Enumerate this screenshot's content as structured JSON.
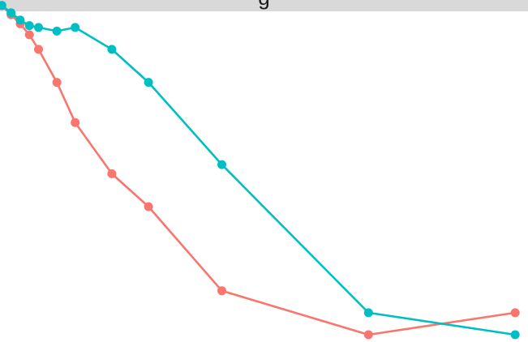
{
  "panel": {
    "strip_label": "g"
  },
  "chart_data": {
    "type": "line",
    "title": "",
    "xlabel": "",
    "ylabel": "",
    "xlim": [
      0.9,
      29.7
    ],
    "ylim": [
      0.6,
      19.3
    ],
    "grid": false,
    "legend": "none",
    "series": [
      {
        "color": "#F8766D",
        "points": [
          {
            "x": 1,
            "y": 19.0
          },
          {
            "x": 1.5,
            "y": 18.5
          },
          {
            "x": 2,
            "y": 18.0
          },
          {
            "x": 2.5,
            "y": 17.4
          },
          {
            "x": 3,
            "y": 16.6
          },
          {
            "x": 4,
            "y": 14.8
          },
          {
            "x": 5,
            "y": 12.6
          },
          {
            "x": 7,
            "y": 9.8
          },
          {
            "x": 9,
            "y": 8.0
          },
          {
            "x": 13,
            "y": 3.4
          },
          {
            "x": 21,
            "y": 1.0
          },
          {
            "x": 29,
            "y": 2.2
          }
        ]
      },
      {
        "color": "#00BFC4",
        "points": [
          {
            "x": 1,
            "y": 19.0
          },
          {
            "x": 1.5,
            "y": 18.6
          },
          {
            "x": 2,
            "y": 18.2
          },
          {
            "x": 2.5,
            "y": 17.9
          },
          {
            "x": 3,
            "y": 17.8
          },
          {
            "x": 4,
            "y": 17.6
          },
          {
            "x": 5,
            "y": 17.8
          },
          {
            "x": 7,
            "y": 16.6
          },
          {
            "x": 9,
            "y": 14.8
          },
          {
            "x": 13,
            "y": 10.3
          },
          {
            "x": 21,
            "y": 2.2
          },
          {
            "x": 29,
            "y": 1.0
          }
        ]
      }
    ]
  }
}
